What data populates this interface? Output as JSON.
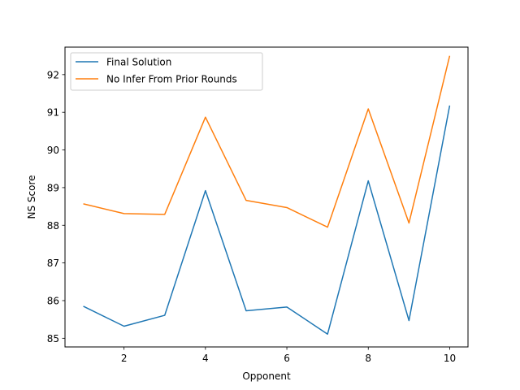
{
  "chart_data": {
    "type": "line",
    "title": "",
    "xlabel": "Opponent",
    "ylabel": "NS Score",
    "x": [
      1,
      2,
      3,
      4,
      5,
      6,
      7,
      8,
      9,
      10
    ],
    "xlim": [
      0.55,
      10.45
    ],
    "ylim": [
      84.77,
      92.73
    ],
    "xticks": [
      2,
      4,
      6,
      8,
      10
    ],
    "yticks": [
      85,
      86,
      87,
      88,
      89,
      90,
      91,
      92
    ],
    "grid": false,
    "legend_position": "upper-left",
    "series": [
      {
        "name": "Final Solution",
        "color": "#1f77b4",
        "values": [
          85.85,
          85.32,
          85.61,
          88.92,
          85.73,
          85.83,
          85.11,
          89.18,
          85.47,
          91.18
        ]
      },
      {
        "name": "No Infer From Prior Rounds",
        "color": "#ff7f0e",
        "values": [
          88.57,
          88.31,
          88.29,
          90.87,
          88.66,
          88.47,
          87.95,
          91.09,
          88.06,
          92.5
        ]
      }
    ]
  }
}
